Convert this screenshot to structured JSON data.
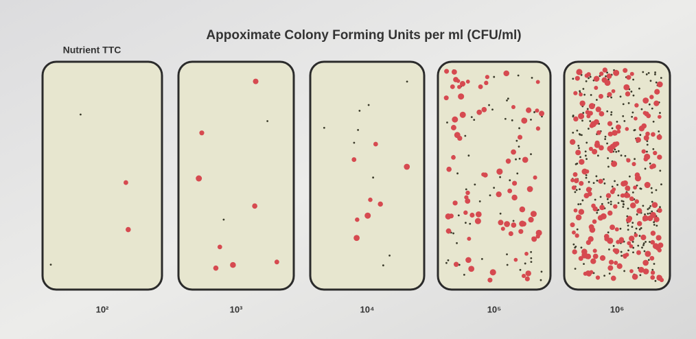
{
  "title": "Appoximate Colony Forming Units per ml (CFU/ml)",
  "medium_label": "Nutrient TTC",
  "plates": [
    "10²",
    "10³",
    "10⁴",
    "10⁵",
    "10⁶"
  ]
}
